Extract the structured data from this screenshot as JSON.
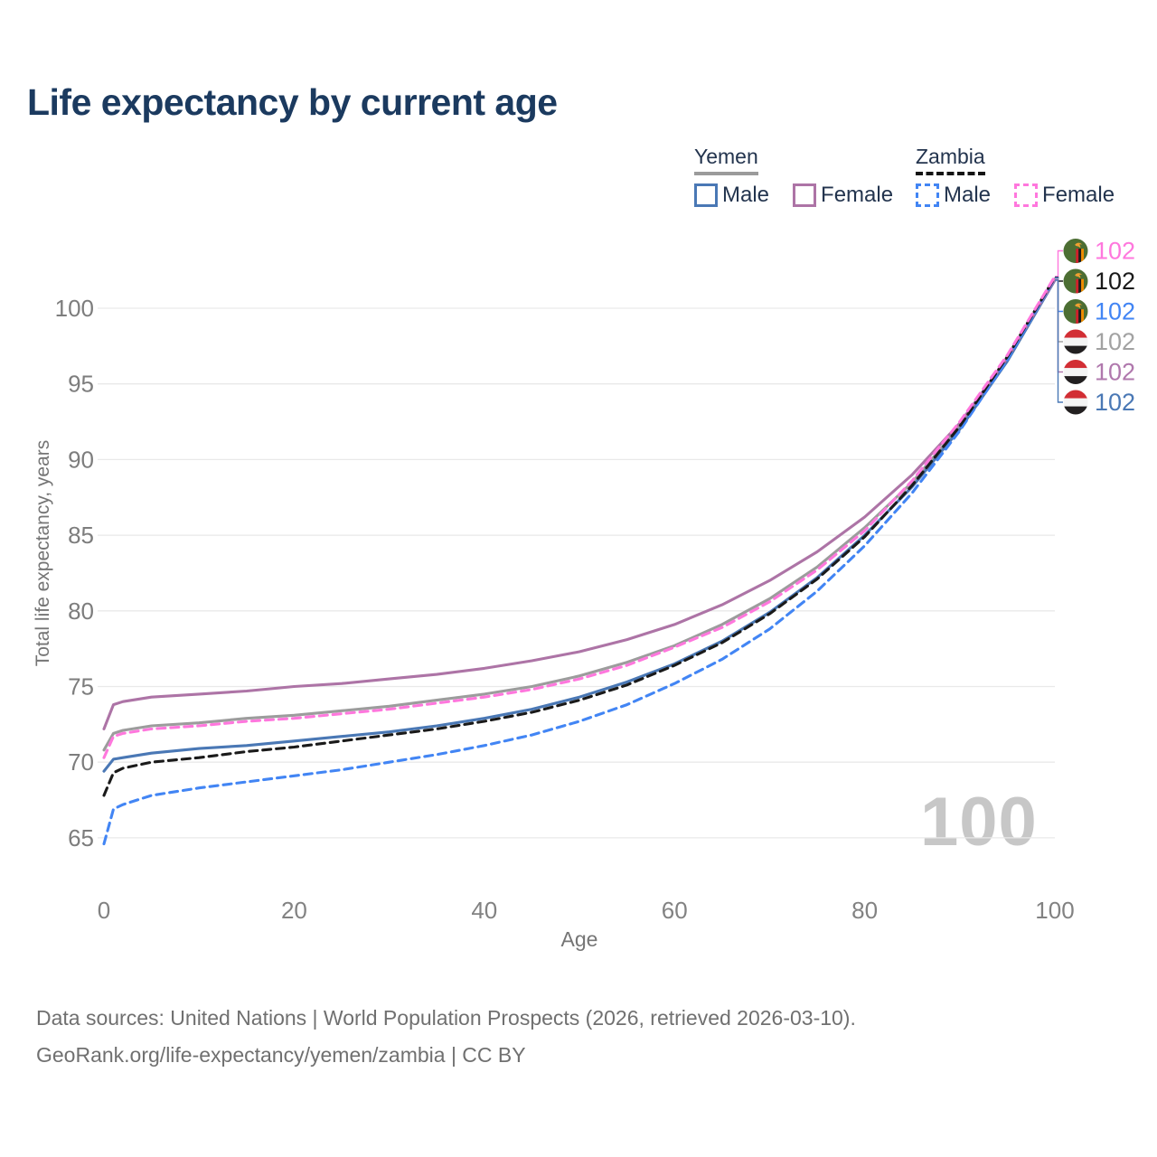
{
  "header": {
    "title": "Life expectancy by current age"
  },
  "legend": {
    "yemen": {
      "name": "Yemen",
      "male_label": "Male",
      "female_label": "Female",
      "male_color": "#4a78b5",
      "female_color": "#ad74a6",
      "line_style": "solid",
      "rule_color": "#9b9b9b"
    },
    "zambia": {
      "name": "Zambia",
      "male_label": "Male",
      "female_label": "Female",
      "male_color": "#4285f4",
      "female_color": "#ff77dd",
      "line_style": "dashed",
      "rule_color": "#141414"
    }
  },
  "watermark": {
    "text": "100"
  },
  "footer": {
    "line1": "Data sources: United Nations | World Population Prospects (2026, retrieved 2026-03-10).",
    "line2": "GeoRank.org/life-expectancy/yemen/zambia | CC BY"
  },
  "right_labels": [
    {
      "series": "zambia_female",
      "flag": "zambia",
      "value": "102",
      "color": "#ff77dd"
    },
    {
      "series": "zambia_total",
      "flag": "zambia",
      "value": "102",
      "color": "#1a1a1a"
    },
    {
      "series": "zambia_male",
      "flag": "zambia",
      "value": "102",
      "color": "#4285f4"
    },
    {
      "series": "yemen_total",
      "flag": "yemen",
      "value": "102",
      "color": "#a2a2a2"
    },
    {
      "series": "yemen_female",
      "flag": "yemen",
      "value": "102",
      "color": "#b078ad"
    },
    {
      "series": "yemen_male",
      "flag": "yemen",
      "value": "102",
      "color": "#4a78b5"
    }
  ],
  "chart_data": {
    "type": "line",
    "title": "Life expectancy by current age",
    "xlabel": "Age",
    "ylabel": "Total life expectancy, years",
    "x_ticks": [
      0,
      20,
      40,
      60,
      80,
      100
    ],
    "y_ticks": [
      65,
      70,
      75,
      80,
      85,
      90,
      95,
      100
    ],
    "xlim": [
      0,
      100
    ],
    "ylim": [
      63.5,
      103
    ],
    "grid": "horizontal-only",
    "legend_position": "top-right",
    "series": [
      {
        "key": "yemen_total",
        "name": "Yemen — Both sexes",
        "color": "#9c9c9c",
        "dash": false,
        "points": [
          [
            0,
            70.8
          ],
          [
            1,
            71.9
          ],
          [
            2,
            72.1
          ],
          [
            5,
            72.4
          ],
          [
            10,
            72.6
          ],
          [
            15,
            72.9
          ],
          [
            20,
            73.1
          ],
          [
            25,
            73.4
          ],
          [
            30,
            73.7
          ],
          [
            35,
            74.1
          ],
          [
            40,
            74.5
          ],
          [
            45,
            75.0
          ],
          [
            50,
            75.7
          ],
          [
            55,
            76.6
          ],
          [
            60,
            77.7
          ],
          [
            65,
            79.1
          ],
          [
            70,
            80.8
          ],
          [
            75,
            82.9
          ],
          [
            80,
            85.5
          ],
          [
            85,
            88.5
          ],
          [
            90,
            92.2
          ],
          [
            95,
            96.7
          ],
          [
            100,
            101.95
          ]
        ]
      },
      {
        "key": "yemen_male",
        "name": "Yemen — Male",
        "color": "#4a78b5",
        "dash": false,
        "points": [
          [
            0,
            69.4
          ],
          [
            1,
            70.2
          ],
          [
            2,
            70.3
          ],
          [
            5,
            70.6
          ],
          [
            10,
            70.9
          ],
          [
            15,
            71.1
          ],
          [
            20,
            71.4
          ],
          [
            25,
            71.7
          ],
          [
            30,
            72.0
          ],
          [
            35,
            72.4
          ],
          [
            40,
            72.9
          ],
          [
            45,
            73.5
          ],
          [
            50,
            74.3
          ],
          [
            55,
            75.3
          ],
          [
            60,
            76.5
          ],
          [
            65,
            78.0
          ],
          [
            70,
            79.9
          ],
          [
            75,
            82.2
          ],
          [
            80,
            85.0
          ],
          [
            85,
            88.2
          ],
          [
            90,
            92.0
          ],
          [
            95,
            96.5
          ],
          [
            100,
            101.85
          ]
        ]
      },
      {
        "key": "yemen_female",
        "name": "Yemen — Female",
        "color": "#ad74a6",
        "dash": false,
        "points": [
          [
            0,
            72.2
          ],
          [
            1,
            73.8
          ],
          [
            2,
            74.0
          ],
          [
            5,
            74.3
          ],
          [
            10,
            74.5
          ],
          [
            15,
            74.7
          ],
          [
            20,
            75.0
          ],
          [
            25,
            75.2
          ],
          [
            30,
            75.5
          ],
          [
            35,
            75.8
          ],
          [
            40,
            76.2
          ],
          [
            45,
            76.7
          ],
          [
            50,
            77.3
          ],
          [
            55,
            78.1
          ],
          [
            60,
            79.1
          ],
          [
            65,
            80.4
          ],
          [
            70,
            82.0
          ],
          [
            75,
            83.9
          ],
          [
            80,
            86.2
          ],
          [
            85,
            89.0
          ],
          [
            90,
            92.4
          ],
          [
            95,
            96.7
          ],
          [
            100,
            101.9
          ]
        ]
      },
      {
        "key": "zambia_male",
        "name": "Zambia — Male",
        "color": "#4285f4",
        "dash": true,
        "points": [
          [
            0,
            64.6
          ],
          [
            1,
            66.9
          ],
          [
            2,
            67.2
          ],
          [
            5,
            67.8
          ],
          [
            10,
            68.3
          ],
          [
            15,
            68.7
          ],
          [
            20,
            69.1
          ],
          [
            25,
            69.5
          ],
          [
            30,
            70.0
          ],
          [
            35,
            70.5
          ],
          [
            40,
            71.1
          ],
          [
            45,
            71.8
          ],
          [
            50,
            72.7
          ],
          [
            55,
            73.8
          ],
          [
            60,
            75.2
          ],
          [
            65,
            76.8
          ],
          [
            70,
            78.8
          ],
          [
            75,
            81.3
          ],
          [
            80,
            84.3
          ],
          [
            85,
            87.8
          ],
          [
            90,
            91.9
          ],
          [
            95,
            96.6
          ],
          [
            100,
            102.0
          ]
        ]
      },
      {
        "key": "zambia_total",
        "name": "Zambia — Both sexes",
        "color": "#1a1a1a",
        "dash": true,
        "points": [
          [
            0,
            67.8
          ],
          [
            1,
            69.3
          ],
          [
            2,
            69.6
          ],
          [
            5,
            70.0
          ],
          [
            10,
            70.3
          ],
          [
            15,
            70.7
          ],
          [
            20,
            71.0
          ],
          [
            25,
            71.4
          ],
          [
            30,
            71.8
          ],
          [
            35,
            72.2
          ],
          [
            40,
            72.7
          ],
          [
            45,
            73.3
          ],
          [
            50,
            74.1
          ],
          [
            55,
            75.1
          ],
          [
            60,
            76.4
          ],
          [
            65,
            77.9
          ],
          [
            70,
            79.8
          ],
          [
            75,
            82.1
          ],
          [
            80,
            84.9
          ],
          [
            85,
            88.3
          ],
          [
            90,
            92.2
          ],
          [
            95,
            96.8
          ],
          [
            100,
            102.05
          ]
        ]
      },
      {
        "key": "zambia_female",
        "name": "Zambia — Female",
        "color": "#ff77dd",
        "dash": true,
        "points": [
          [
            0,
            70.3
          ],
          [
            1,
            71.7
          ],
          [
            2,
            71.9
          ],
          [
            5,
            72.2
          ],
          [
            10,
            72.4
          ],
          [
            15,
            72.7
          ],
          [
            20,
            72.9
          ],
          [
            25,
            73.2
          ],
          [
            30,
            73.5
          ],
          [
            35,
            73.9
          ],
          [
            40,
            74.3
          ],
          [
            45,
            74.8
          ],
          [
            50,
            75.5
          ],
          [
            55,
            76.4
          ],
          [
            60,
            77.6
          ],
          [
            65,
            78.9
          ],
          [
            70,
            80.6
          ],
          [
            75,
            82.7
          ],
          [
            80,
            85.3
          ],
          [
            85,
            88.6
          ],
          [
            90,
            92.5
          ],
          [
            95,
            96.9
          ],
          [
            100,
            102.1
          ]
        ]
      }
    ]
  }
}
